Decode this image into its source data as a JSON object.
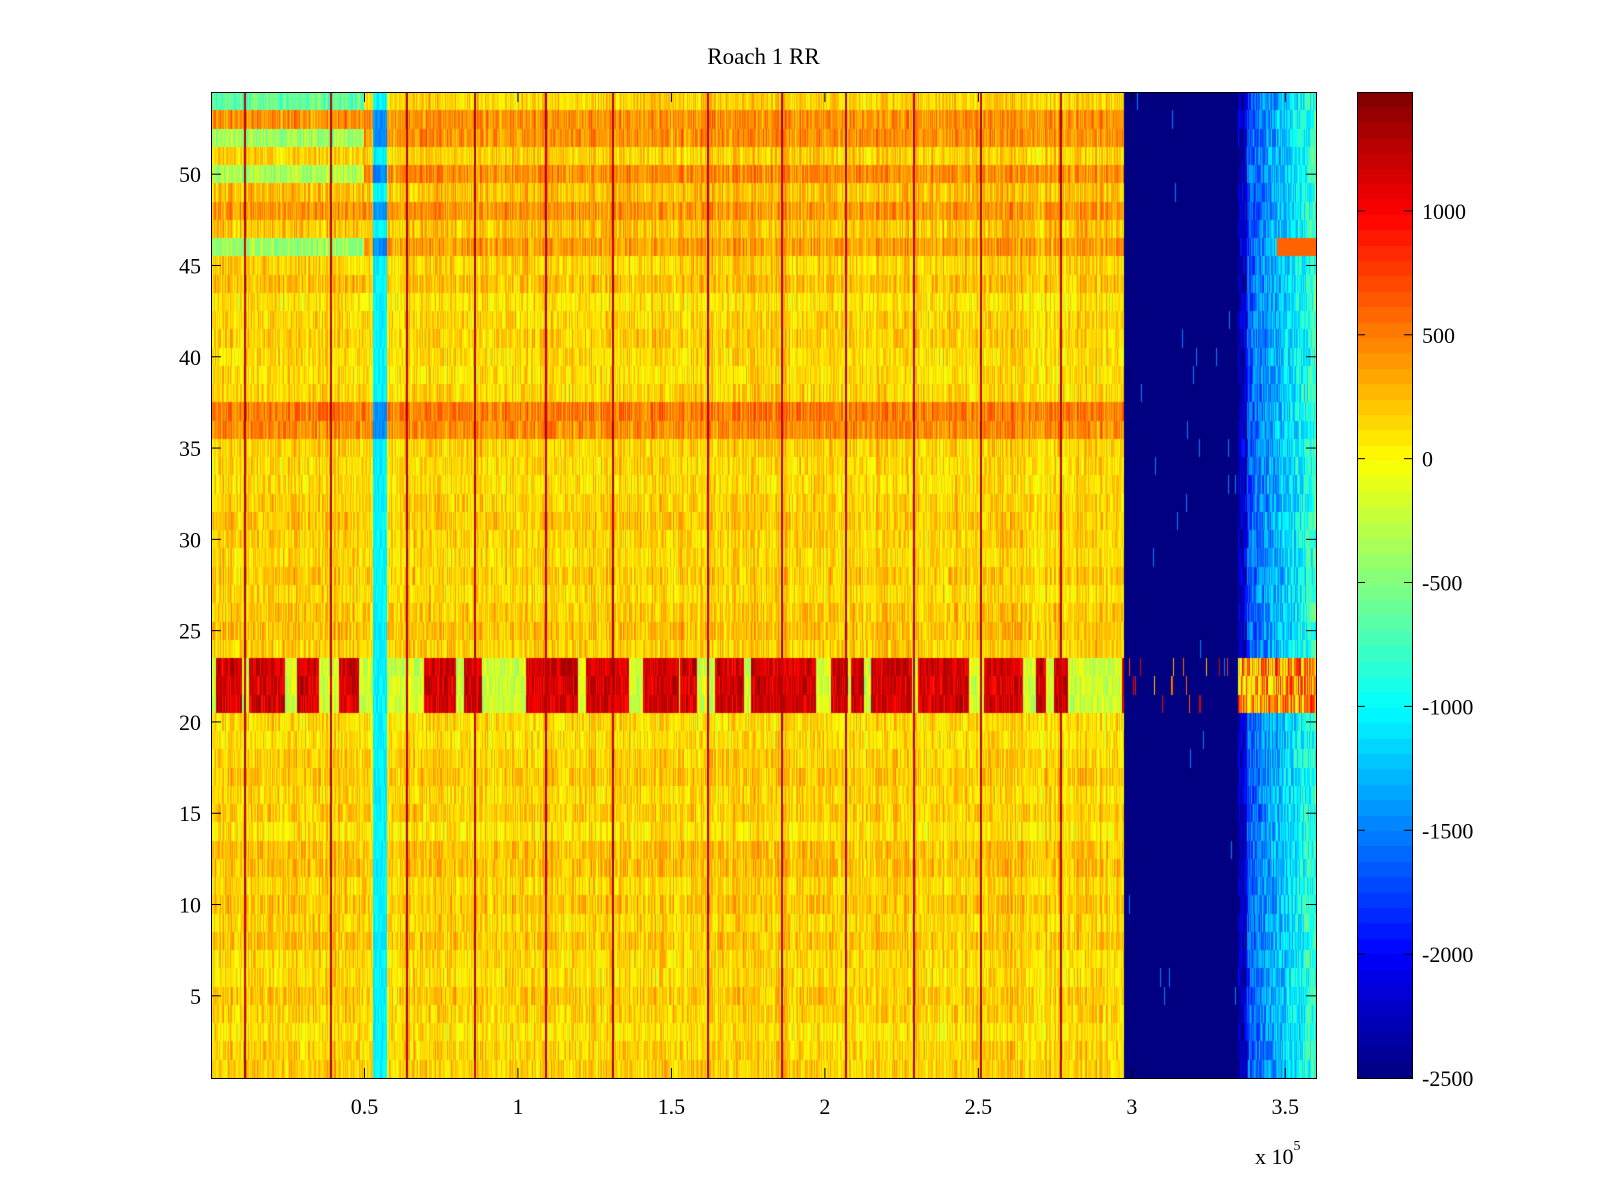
{
  "chart_data": {
    "type": "heatmap",
    "title": "Roach 1 RR",
    "xlabel": "",
    "ylabel": "",
    "colormap": "jet",
    "x_range": [
      0,
      360000
    ],
    "y_range": [
      0.5,
      54.5
    ],
    "x_ticks": [
      {
        "value": 50000,
        "label": "0.5"
      },
      {
        "value": 100000,
        "label": "1"
      },
      {
        "value": 150000,
        "label": "1.5"
      },
      {
        "value": 200000,
        "label": "2"
      },
      {
        "value": 250000,
        "label": "2.5"
      },
      {
        "value": 300000,
        "label": "3"
      },
      {
        "value": 350000,
        "label": "3.5"
      }
    ],
    "x_exponent_label": "x 10",
    "x_exponent_power": "5",
    "y_ticks": [
      {
        "value": 5,
        "label": "5"
      },
      {
        "value": 10,
        "label": "10"
      },
      {
        "value": 15,
        "label": "15"
      },
      {
        "value": 20,
        "label": "20"
      },
      {
        "value": 25,
        "label": "25"
      },
      {
        "value": 30,
        "label": "30"
      },
      {
        "value": 35,
        "label": "35"
      },
      {
        "value": 40,
        "label": "40"
      },
      {
        "value": 45,
        "label": "45"
      },
      {
        "value": 50,
        "label": "50"
      }
    ],
    "colorbar": {
      "range": [
        -2500,
        1480
      ],
      "ticks": [
        {
          "value": 1000,
          "label": "1000"
        },
        {
          "value": 500,
          "label": "500"
        },
        {
          "value": 0,
          "label": "0"
        },
        {
          "value": -500,
          "label": "-500"
        },
        {
          "value": -1000,
          "label": "-1000"
        },
        {
          "value": -1500,
          "label": "-1500"
        },
        {
          "value": -2000,
          "label": "-2000"
        },
        {
          "value": -2500,
          "label": "-2500"
        }
      ]
    },
    "rows": 54,
    "regions": {
      "background_level": 150,
      "cyan_band": {
        "x_center": 55000,
        "half_width": 2200,
        "level": -1050
      },
      "saturated_block": {
        "x_start": 297500,
        "x_end": 334500,
        "level": -2500
      },
      "recovery_zone": {
        "x_start": 334500,
        "x_end": 360000,
        "start_level": -1800,
        "end_level": -800
      },
      "dark_vertical_lines_x": [
        11000,
        39000,
        64000,
        86000,
        109000,
        131000,
        162000,
        186000,
        207000,
        229000,
        251000,
        277000
      ],
      "high_rows": [
        21,
        22,
        23
      ],
      "hot_rows": [
        36,
        37,
        46,
        48,
        50,
        52,
        53
      ],
      "cool_rows_left": [
        46,
        50,
        52,
        54
      ]
    }
  }
}
